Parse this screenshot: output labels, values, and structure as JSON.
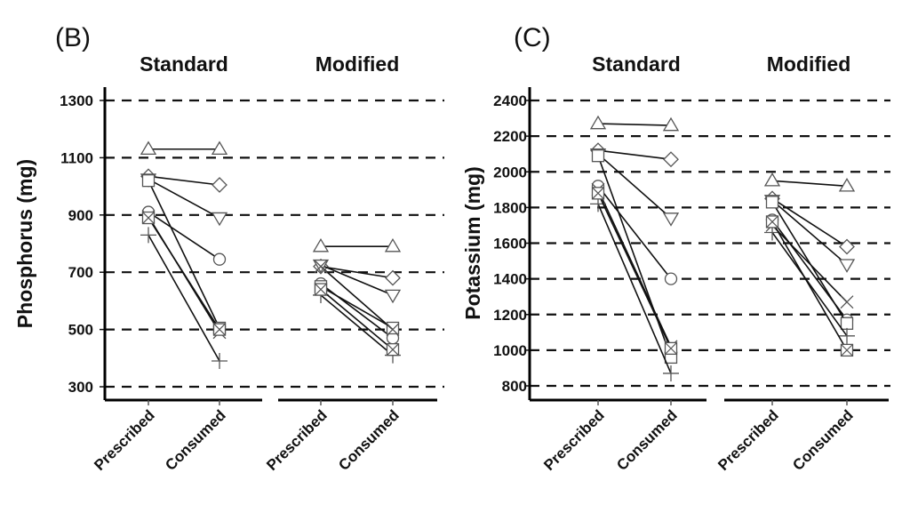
{
  "chart_data": [
    {
      "type": "line",
      "panel_label": "(B)",
      "ylabel": "Phosphorus (mg)",
      "ylim": [
        300,
        1300
      ],
      "yticks": [
        300,
        500,
        700,
        900,
        1100,
        1300
      ],
      "grid": "dashed horizontal",
      "categories": [
        "Prescribed",
        "Consumed"
      ],
      "groups": [
        {
          "name": "Standard",
          "series": [
            {
              "marker": "triangle",
              "values": [
                1130,
                1130
              ]
            },
            {
              "marker": "diamond",
              "values": [
                1035,
                1005
              ]
            },
            {
              "marker": "inverted-triangle",
              "values": [
                1025,
                890
              ]
            },
            {
              "marker": "circle",
              "values": [
                910,
                745
              ]
            },
            {
              "marker": "square",
              "values": [
                1020,
                505
              ]
            },
            {
              "marker": "x",
              "values": [
                895,
                490
              ]
            },
            {
              "marker": "plus",
              "values": [
                830,
                390
              ]
            },
            {
              "marker": "square-x",
              "values": [
                890,
                500
              ]
            }
          ]
        },
        {
          "name": "Modified",
          "series": [
            {
              "marker": "triangle",
              "values": [
                790,
                790
              ]
            },
            {
              "marker": "diamond",
              "values": [
                720,
                680
              ]
            },
            {
              "marker": "inverted-triangle",
              "values": [
                725,
                620
              ]
            },
            {
              "marker": "circle",
              "values": [
                660,
                470
              ]
            },
            {
              "marker": "square",
              "values": [
                650,
                505
              ]
            },
            {
              "marker": "x",
              "values": [
                720,
                500
              ]
            },
            {
              "marker": "plus",
              "values": [
                620,
                410
              ]
            },
            {
              "marker": "square-x",
              "values": [
                640,
                430
              ]
            }
          ]
        }
      ]
    },
    {
      "type": "line",
      "panel_label": "(C)",
      "ylabel": "Potassium (mg)",
      "ylim": [
        800,
        2400
      ],
      "yticks": [
        800,
        1000,
        1200,
        1400,
        1600,
        1800,
        2000,
        2200,
        2400
      ],
      "grid": "dashed horizontal",
      "categories": [
        "Prescribed",
        "Consumed"
      ],
      "groups": [
        {
          "name": "Standard",
          "series": [
            {
              "marker": "triangle",
              "values": [
                2270,
                2260
              ]
            },
            {
              "marker": "diamond",
              "values": [
                2120,
                2070
              ]
            },
            {
              "marker": "inverted-triangle",
              "values": [
                2100,
                1740
              ]
            },
            {
              "marker": "circle",
              "values": [
                1920,
                1400
              ]
            },
            {
              "marker": "square",
              "values": [
                2090,
                960
              ]
            },
            {
              "marker": "x",
              "values": [
                1900,
                1020
              ]
            },
            {
              "marker": "plus",
              "values": [
                1820,
                870
              ]
            },
            {
              "marker": "square-x",
              "values": [
                1880,
                1010
              ]
            }
          ]
        },
        {
          "name": "Modified",
          "series": [
            {
              "marker": "triangle",
              "values": [
                1950,
                1920
              ]
            },
            {
              "marker": "diamond",
              "values": [
                1850,
                1580
              ]
            },
            {
              "marker": "inverted-triangle",
              "values": [
                1840,
                1480
              ]
            },
            {
              "marker": "circle",
              "values": [
                1730,
                1170
              ]
            },
            {
              "marker": "square",
              "values": [
                1830,
                1150
              ]
            },
            {
              "marker": "x",
              "values": [
                1700,
                1270
              ]
            },
            {
              "marker": "plus",
              "values": [
                1660,
                1080
              ]
            },
            {
              "marker": "square-x",
              "values": [
                1720,
                1000
              ]
            }
          ]
        }
      ]
    }
  ]
}
